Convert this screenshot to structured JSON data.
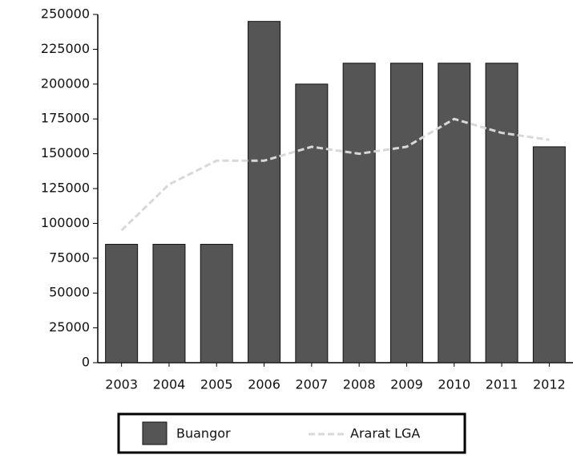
{
  "chart_data": {
    "type": "bar",
    "categories": [
      "2003",
      "2004",
      "2005",
      "2006",
      "2007",
      "2008",
      "2009",
      "2010",
      "2011",
      "2012"
    ],
    "series": [
      {
        "name": "Buangor",
        "type": "bar",
        "color": "#555555",
        "values": [
          85000,
          85000,
          85000,
          245000,
          200000,
          215000,
          215000,
          215000,
          215000,
          155000
        ]
      },
      {
        "name": "Ararat LGA",
        "type": "line",
        "color": "#d8d8d8",
        "values": [
          95000,
          128000,
          145000,
          145000,
          155000,
          150000,
          155000,
          175000,
          165000,
          160000
        ]
      }
    ],
    "ylim": [
      0,
      250000
    ],
    "yticks": [
      0,
      25000,
      50000,
      75000,
      100000,
      125000,
      150000,
      175000,
      200000,
      225000,
      250000
    ],
    "legend": "bottom"
  }
}
